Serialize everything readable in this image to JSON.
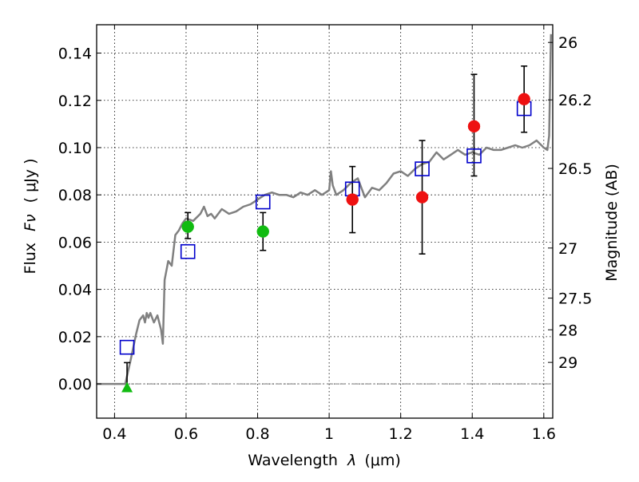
{
  "chart_data": {
    "type": "scatter",
    "title": "",
    "xlabel_text": "Wavelength",
    "xlabel_symbol": "λ",
    "xlabel_unit": "(μm)",
    "ylabel_text": "Flux",
    "ylabel_symbol": "Fν",
    "ylabel_unit": "( μJy )",
    "y2label": "Magnitude (AB)",
    "xlim": [
      0.35,
      1.625
    ],
    "ylim": [
      -0.0145,
      0.152
    ],
    "grid": true,
    "xticks": [
      0.4,
      0.6,
      0.8,
      1.0,
      1.2,
      1.4,
      1.6
    ],
    "xtick_labels": [
      "0.4",
      "0.6",
      "0.8",
      "1",
      "1.2",
      "1.4",
      "1.6"
    ],
    "yticks": [
      0.0,
      0.02,
      0.04,
      0.06,
      0.08,
      0.1,
      0.12,
      0.14
    ],
    "ytick_labels": [
      "0.00",
      "0.02",
      "0.04",
      "0.06",
      "0.08",
      "0.10",
      "0.12",
      "0.14"
    ],
    "y2ticks": [
      {
        "label": "26",
        "flux": 0.1445
      },
      {
        "label": "26.2",
        "flux": 0.1202
      },
      {
        "label": "26.5",
        "flux": 0.0912
      },
      {
        "label": "27",
        "flux": 0.0575
      },
      {
        "label": "27.5",
        "flux": 0.0363
      },
      {
        "label": "28",
        "flux": 0.0229
      },
      {
        "label": "29",
        "flux": 0.0091
      }
    ],
    "colors": {
      "spectrum": "#808080",
      "model_boxes": "#0000cc",
      "red_points": "#ee1111",
      "green_points": "#11bb11",
      "errorbars": "#000000",
      "zero_line": "#666666"
    },
    "series": [
      {
        "kind": "spectrum",
        "x": [
          0.35,
          0.43,
          0.445,
          0.46,
          0.47,
          0.48,
          0.485,
          0.49,
          0.495,
          0.5,
          0.51,
          0.52,
          0.53,
          0.535,
          0.54,
          0.55,
          0.56,
          0.57,
          0.58,
          0.59,
          0.6,
          0.62,
          0.64,
          0.65,
          0.66,
          0.67,
          0.68,
          0.7,
          0.72,
          0.74,
          0.76,
          0.78,
          0.8,
          0.82,
          0.84,
          0.86,
          0.88,
          0.9,
          0.92,
          0.94,
          0.96,
          0.98,
          1.0,
          1.005,
          1.01,
          1.02,
          1.04,
          1.06,
          1.08,
          1.1,
          1.12,
          1.14,
          1.16,
          1.18,
          1.2,
          1.22,
          1.24,
          1.26,
          1.28,
          1.3,
          1.32,
          1.34,
          1.36,
          1.38,
          1.4,
          1.42,
          1.44,
          1.46,
          1.48,
          1.5,
          1.52,
          1.54,
          1.56,
          1.58,
          1.6,
          1.61,
          1.615,
          1.62
        ],
        "y": [
          0.0,
          0.0,
          0.01,
          0.021,
          0.027,
          0.029,
          0.026,
          0.03,
          0.028,
          0.03,
          0.026,
          0.029,
          0.023,
          0.017,
          0.044,
          0.052,
          0.05,
          0.063,
          0.065,
          0.068,
          0.07,
          0.069,
          0.072,
          0.075,
          0.071,
          0.072,
          0.07,
          0.074,
          0.072,
          0.073,
          0.075,
          0.076,
          0.078,
          0.08,
          0.081,
          0.08,
          0.08,
          0.079,
          0.081,
          0.08,
          0.082,
          0.08,
          0.082,
          0.09,
          0.084,
          0.08,
          0.082,
          0.085,
          0.087,
          0.079,
          0.083,
          0.082,
          0.085,
          0.089,
          0.09,
          0.088,
          0.091,
          0.093,
          0.094,
          0.098,
          0.095,
          0.097,
          0.099,
          0.097,
          0.098,
          0.097,
          0.1,
          0.099,
          0.099,
          0.1,
          0.101,
          0.1,
          0.101,
          0.103,
          0.1,
          0.099,
          0.105,
          0.148
        ]
      },
      {
        "kind": "boxes",
        "x": [
          0.435,
          0.605,
          0.815,
          1.065,
          1.26,
          1.405,
          1.545
        ],
        "y": [
          0.0155,
          0.056,
          0.077,
          0.0825,
          0.091,
          0.0965,
          0.1165
        ]
      },
      {
        "kind": "points",
        "color_key": "red_points",
        "x": [
          1.065,
          1.26,
          1.405,
          1.545
        ],
        "y": [
          0.078,
          0.079,
          0.109,
          0.1205
        ],
        "yerr_low": [
          0.014,
          0.024,
          0.021,
          0.014
        ],
        "yerr_high": [
          0.014,
          0.024,
          0.022,
          0.014
        ]
      },
      {
        "kind": "points",
        "color_key": "green_points",
        "x": [
          0.605,
          0.815
        ],
        "y": [
          0.0665,
          0.0645
        ],
        "yerr_low": [
          0.005,
          0.008
        ],
        "yerr_high": [
          0.006,
          0.008
        ]
      },
      {
        "kind": "triangle",
        "color_key": "green_points",
        "x": [
          0.435
        ],
        "y": [
          -0.0015
        ],
        "yerr_low": [
          0.0
        ],
        "yerr_high": [
          0.0105
        ]
      }
    ]
  }
}
